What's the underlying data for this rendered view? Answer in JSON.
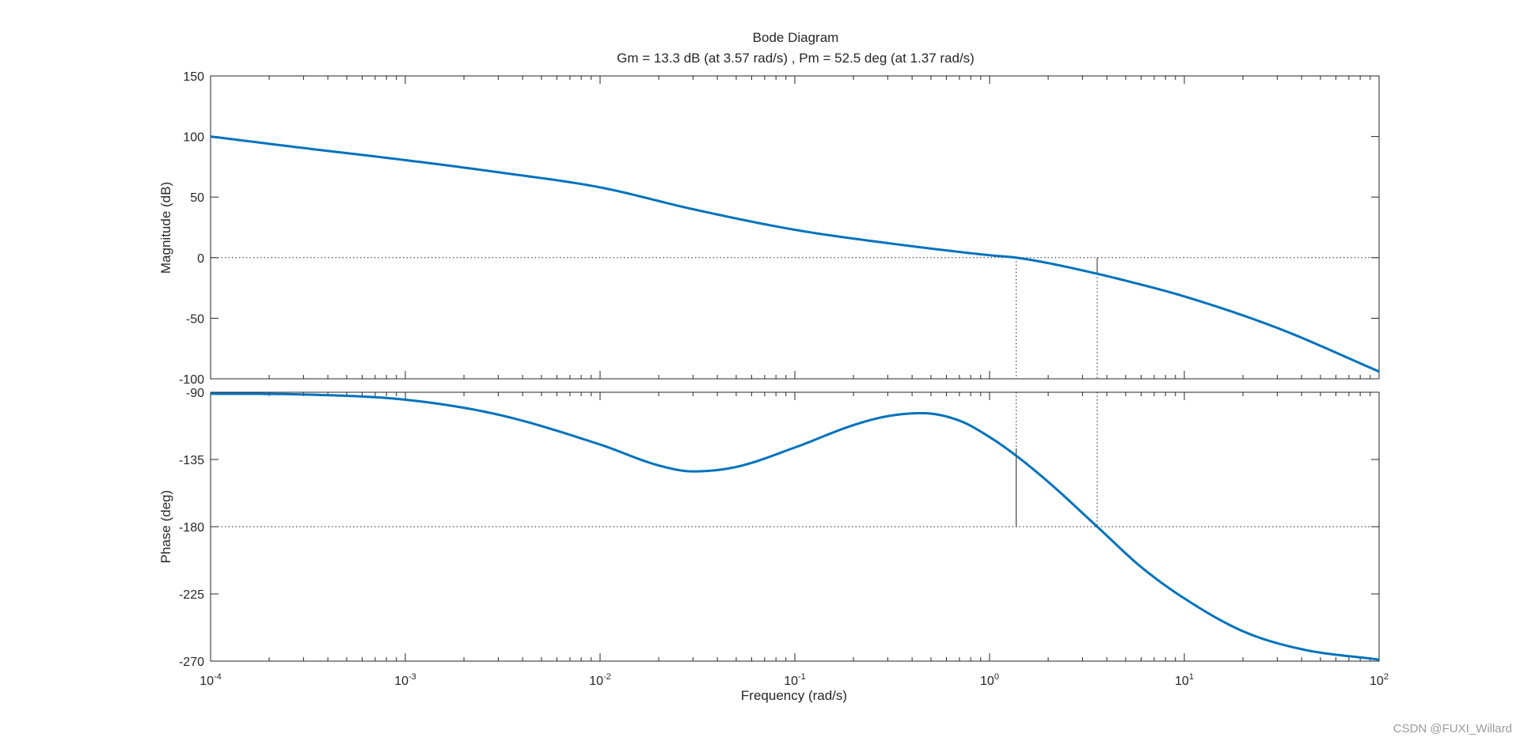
{
  "chart_data": {
    "type": "line",
    "title": "Bode Diagram",
    "subtitle": "Gm = 13.3 dB (at 3.57 rad/s) ,  Pm = 52.5 deg (at 1.37 rad/s)",
    "xlabel": "Frequency  (rad/s)",
    "x_scale": "log",
    "xlim": [
      0.0001,
      100
    ],
    "x_tick_labels": [
      {
        "value": 0.0001,
        "base": "10",
        "exp": "-4"
      },
      {
        "value": 0.001,
        "base": "10",
        "exp": "-3"
      },
      {
        "value": 0.01,
        "base": "10",
        "exp": "-2"
      },
      {
        "value": 0.1,
        "base": "10",
        "exp": "-1"
      },
      {
        "value": 1,
        "base": "10",
        "exp": "0"
      },
      {
        "value": 10,
        "base": "10",
        "exp": "1"
      },
      {
        "value": 100,
        "base": "10",
        "exp": "2"
      }
    ],
    "grid": false,
    "line_color": "#0072BD",
    "panels": [
      {
        "id": "magnitude",
        "ylabel": "Magnitude (dB)",
        "ylim": [
          -100,
          150
        ],
        "yticks": [
          150,
          100,
          50,
          0,
          -50,
          -100
        ],
        "ytick_labels": [
          "150",
          "100",
          "50",
          "0",
          "-50",
          "-100"
        ],
        "reference_line": 0,
        "x": [
          0.0001,
          0.0003,
          0.001,
          0.003,
          0.01,
          0.03,
          0.1,
          0.3,
          1,
          1.37,
          2,
          3.57,
          5,
          10,
          30,
          100
        ],
        "y": [
          100,
          90.5,
          80.5,
          70.5,
          58,
          40,
          23,
          12,
          2,
          0,
          -4.5,
          -13.3,
          -19,
          -32,
          -58,
          -94
        ]
      },
      {
        "id": "phase",
        "ylabel": "Phase (deg)",
        "ylim": [
          -270,
          -90
        ],
        "yticks": [
          -90,
          -135,
          -180,
          -225,
          -270
        ],
        "ytick_labels": [
          "-90",
          "-135",
          "-180",
          "-225",
          "-270"
        ],
        "reference_line": -180,
        "x": [
          0.0001,
          0.0003,
          0.001,
          0.003,
          0.01,
          0.02,
          0.03,
          0.05,
          0.1,
          0.2,
          0.3,
          0.45,
          0.7,
          1,
          1.37,
          2,
          3.57,
          6,
          10,
          20,
          40,
          100
        ],
        "y": [
          -91,
          -91.5,
          -95,
          -105,
          -125,
          -139,
          -143,
          -140,
          -127,
          -112,
          -106,
          -104,
          -109,
          -120,
          -132.5,
          -150,
          -180,
          -207,
          -228,
          -250,
          -262,
          -269
        ]
      }
    ],
    "margins": {
      "gain_margin_db": 13.3,
      "gain_crossover_freq": 3.57,
      "phase_margin_deg": 52.5,
      "phase_crossover_freq": 1.37
    }
  },
  "watermark": "CSDN @FUXI_Willard"
}
